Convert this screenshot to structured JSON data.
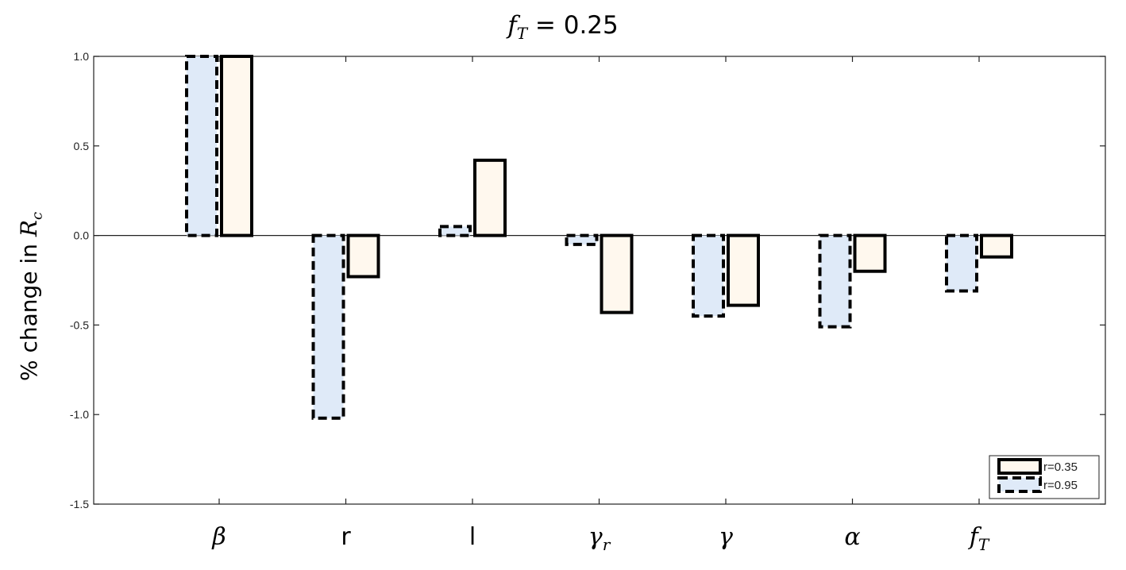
{
  "chart_data": {
    "type": "bar",
    "title": {
      "symbol": "f",
      "sub": "T",
      "rest": " = 0.25"
    },
    "ylabel": {
      "text": "% change in ",
      "symbol": "R",
      "sub": "c"
    },
    "ylim": [
      -1.5,
      1.0
    ],
    "yticks": [
      "1.0",
      "0.5",
      "0.0",
      "-0.5",
      "-1.0",
      "-1.5"
    ],
    "ytick_values": [
      1.0,
      0.5,
      0.0,
      -0.5,
      -1.0,
      -1.5
    ],
    "categories": [
      "β",
      "r",
      "l",
      "γ",
      "γ",
      "α",
      "f"
    ],
    "category_subscripts": [
      "",
      "",
      "",
      "r",
      "",
      "",
      "T"
    ],
    "series": [
      {
        "name": "r=0.95",
        "style": "dashed",
        "fill": "#dfeaf8",
        "values": [
          1.0,
          -1.02,
          0.05,
          -0.05,
          -0.45,
          -0.51,
          -0.31
        ]
      },
      {
        "name": "r=0.35",
        "style": "solid",
        "fill": "#fff8ee",
        "values": [
          1.0,
          -0.23,
          0.42,
          -0.43,
          -0.39,
          -0.2,
          -0.12
        ]
      }
    ],
    "legend": {
      "placement": "bottom-right",
      "entries": [
        "r=0.35",
        "r=0.95"
      ]
    },
    "grid": false
  }
}
